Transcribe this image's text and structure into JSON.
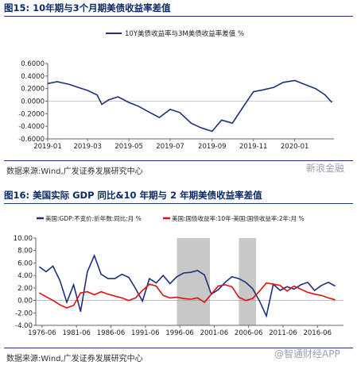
{
  "figure1": {
    "title": "图15:   10年期与3个月期美债收益率差值",
    "source": "数据来源:Wind,广发证券发展研究中心",
    "watermark": "新浪金融",
    "chart_data": {
      "type": "line",
      "title": "",
      "xlabel": "",
      "ylabel": "",
      "series": [
        {
          "name": "10Y美债收益率与3M美债收益率差值 %",
          "color": "#1f2f7a",
          "x": [
            "2019-01-01",
            "2019-01-15",
            "2019-02-01",
            "2019-02-15",
            "2019-03-01",
            "2019-03-15",
            "2019-03-22",
            "2019-04-01",
            "2019-04-15",
            "2019-05-01",
            "2019-05-15",
            "2019-06-01",
            "2019-06-15",
            "2019-07-01",
            "2019-07-15",
            "2019-08-01",
            "2019-08-15",
            "2019-09-01",
            "2019-09-15",
            "2019-10-01",
            "2019-10-15",
            "2019-11-01",
            "2019-11-15",
            "2019-12-01",
            "2019-12-15",
            "2020-01-01",
            "2020-01-15",
            "2020-02-01",
            "2020-02-15",
            "2020-02-25"
          ],
          "y": [
            0.28,
            0.31,
            0.27,
            0.22,
            0.17,
            0.1,
            -0.05,
            0.02,
            0.07,
            -0.02,
            -0.08,
            -0.18,
            -0.26,
            -0.13,
            -0.18,
            -0.35,
            -0.42,
            -0.48,
            -0.3,
            -0.35,
            -0.12,
            0.15,
            0.18,
            0.22,
            0.3,
            0.33,
            0.27,
            0.2,
            0.1,
            -0.02
          ]
        }
      ],
      "x_ticks": [
        "2019-01",
        "2019-03",
        "2019-05",
        "2019-07",
        "2019-09",
        "2019-11",
        "2020-01"
      ],
      "y_ticks": [
        "0.6000",
        "0.4000",
        "0.2000",
        "0.0000",
        "-0.2000",
        "-0.4000",
        "-0.6000"
      ],
      "ylim": [
        -0.6,
        0.6
      ],
      "grid": false,
      "legend_position": "top"
    }
  },
  "figure2": {
    "title": "图16:   美国实际 GDP 同比&10 年期与 2 年期美债收益率差值",
    "source": "数据来源:Wind,广发证券发展研究中心",
    "watermark": "@智通财经APP",
    "chart_data": {
      "type": "line",
      "title": "",
      "xlabel": "",
      "ylabel": "",
      "series": [
        {
          "name": "美国:GDP:不变价:折年数:同比:月 %",
          "color": "#1f2f7a",
          "x": [
            1976,
            1977,
            1978,
            1979,
            1980,
            1981,
            1982,
            1983,
            1984,
            1985,
            1986,
            1987,
            1988,
            1989,
            1990,
            1991,
            1992,
            1993,
            1994,
            1995,
            1996,
            1997,
            1998,
            1999,
            2000,
            2001,
            2002,
            2003,
            2004,
            2005,
            2006,
            2007,
            2008,
            2009,
            2010,
            2011,
            2012,
            2013,
            2014,
            2015,
            2016,
            2017,
            2018,
            2019
          ],
          "y": [
            5.4,
            4.6,
            5.5,
            3.2,
            -0.3,
            2.5,
            -1.8,
            4.6,
            7.2,
            4.2,
            3.5,
            3.5,
            4.2,
            3.7,
            1.9,
            -0.1,
            3.5,
            2.8,
            4.0,
            2.7,
            3.8,
            4.4,
            4.5,
            4.8,
            4.1,
            1.0,
            1.7,
            2.9,
            3.8,
            3.5,
            2.9,
            1.9,
            -0.1,
            -2.5,
            2.6,
            1.6,
            2.2,
            1.8,
            2.5,
            2.9,
            1.6,
            2.4,
            2.9,
            2.3
          ]
        },
        {
          "name": "美国:国债收益率:10年-美国:国债收益率:2年:月 %",
          "color": "#e01010",
          "x": [
            1976,
            1977,
            1978,
            1979,
            1980,
            1981,
            1982,
            1983,
            1984,
            1985,
            1986,
            1987,
            1988,
            1989,
            1990,
            1991,
            1992,
            1993,
            1994,
            1995,
            1996,
            1997,
            1998,
            1999,
            2000,
            2001,
            2002,
            2003,
            2004,
            2005,
            2006,
            2007,
            2008,
            2009,
            2010,
            2011,
            2012,
            2013,
            2014,
            2015,
            2016,
            2017,
            2018,
            2019
          ],
          "y": [
            1.2,
            0.6,
            0.0,
            -0.7,
            -1.2,
            -0.8,
            1.2,
            1.4,
            0.9,
            1.4,
            1.0,
            0.7,
            0.4,
            0.0,
            0.4,
            1.6,
            2.6,
            2.3,
            0.8,
            0.4,
            0.5,
            0.3,
            0.2,
            0.4,
            -0.3,
            1.0,
            2.3,
            2.5,
            2.2,
            0.5,
            0.0,
            0.3,
            1.5,
            2.8,
            2.6,
            2.4,
            1.5,
            2.3,
            1.8,
            1.3,
            1.0,
            0.8,
            0.4,
            0.1
          ]
        }
      ],
      "shaded_periods": [
        [
          1996.0,
          2000.8
        ],
        [
          2005.0,
          2007.5
        ]
      ],
      "x_ticks": [
        "1976-06",
        "1981-06",
        "1986-06",
        "1991-06",
        "1996-06",
        "2001-06",
        "2006-06",
        "2011-06",
        "2016-06"
      ],
      "y_ticks": [
        "10.00",
        "8.00",
        "6.00",
        "4.00",
        "2.00",
        "0.00",
        "-2.00",
        "-4.00"
      ],
      "ylim": [
        -4,
        10
      ],
      "grid": false,
      "legend_position": "top"
    }
  }
}
